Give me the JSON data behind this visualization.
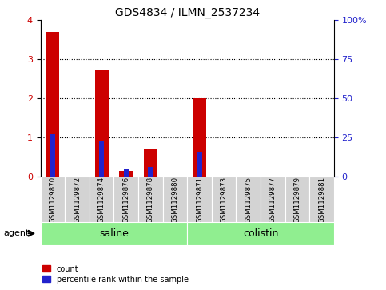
{
  "title": "GDS4834 / ILMN_2537234",
  "samples": [
    "GSM1129870",
    "GSM1129872",
    "GSM1129874",
    "GSM1129876",
    "GSM1129878",
    "GSM1129880",
    "GSM1129871",
    "GSM1129873",
    "GSM1129875",
    "GSM1129877",
    "GSM1129879",
    "GSM1129881"
  ],
  "count_values": [
    3.7,
    0.0,
    2.75,
    0.15,
    0.7,
    0.0,
    2.0,
    0.0,
    0.0,
    0.0,
    0.0,
    0.0
  ],
  "percentile_values": [
    27.5,
    0.0,
    22.5,
    5.0,
    6.25,
    0.0,
    16.25,
    0.0,
    0.0,
    0.0,
    0.0,
    0.0
  ],
  "groups": [
    {
      "label": "saline",
      "start": 0,
      "end": 6
    },
    {
      "label": "colistin",
      "start": 6,
      "end": 12
    }
  ],
  "ylim_left": [
    0,
    4
  ],
  "ylim_right": [
    0,
    100
  ],
  "yticks_left": [
    0,
    1,
    2,
    3,
    4
  ],
  "yticks_right": [
    0,
    25,
    50,
    75,
    100
  ],
  "yticklabels_right": [
    "0",
    "25",
    "50",
    "75",
    "100%"
  ],
  "bar_color_red": "#cc0000",
  "bar_color_blue": "#2222cc",
  "group_box_color": "#90ee90",
  "sample_box_color": "#d3d3d3",
  "tick_label_color_left": "#cc0000",
  "tick_label_color_right": "#2222cc",
  "agent_label": "agent",
  "legend_count": "count",
  "legend_percentile": "percentile rank within the sample",
  "bar_width": 0.55,
  "percentile_bar_width": 0.2,
  "grid_color": "black",
  "bg_color": "#ffffff"
}
